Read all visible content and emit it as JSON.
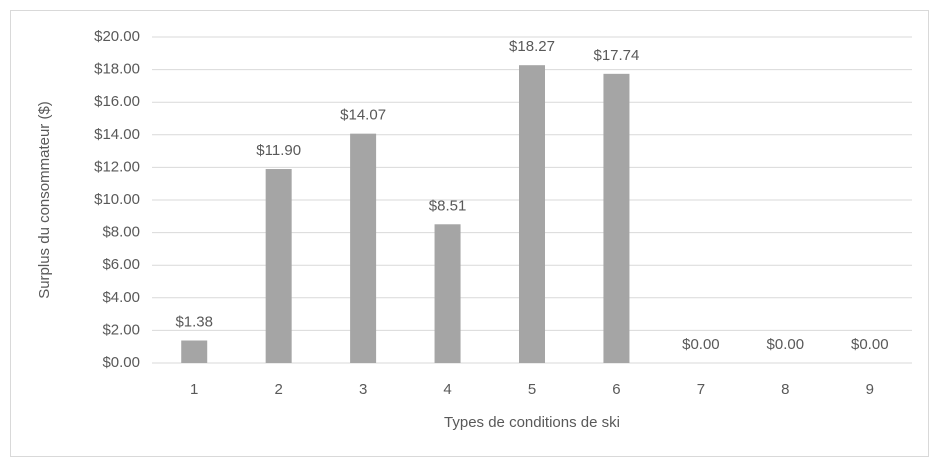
{
  "chart_data": {
    "type": "bar",
    "x_label": "Types de conditions de ski",
    "y_label": "Surplus du consommateur ($)",
    "categories": [
      "1",
      "2",
      "3",
      "4",
      "5",
      "6",
      "7",
      "8",
      "9"
    ],
    "values": [
      1.38,
      11.9,
      14.07,
      8.51,
      18.27,
      17.74,
      0,
      0,
      0
    ],
    "value_labels": [
      "$1.38",
      "$11.90",
      "$14.07",
      "$8.51",
      "$18.27",
      "$17.74",
      "$0.00",
      "$0.00",
      "$0.00"
    ],
    "color": "#a5a5a5",
    "ylim": [
      0,
      20
    ],
    "yticks": [
      {
        "value": 0,
        "label": "$0.00"
      },
      {
        "value": 2,
        "label": "$2.00"
      },
      {
        "value": 4,
        "label": "$4.00"
      },
      {
        "value": 6,
        "label": "$6.00"
      },
      {
        "value": 8,
        "label": "$8.00"
      },
      {
        "value": 10,
        "label": "$10.00"
      },
      {
        "value": 12,
        "label": "$12.00"
      },
      {
        "value": 14,
        "label": "$14.00"
      },
      {
        "value": 16,
        "label": "$16.00"
      },
      {
        "value": 18,
        "label": "$18.00"
      },
      {
        "value": 20,
        "label": "$20.00"
      }
    ],
    "grid": true
  }
}
